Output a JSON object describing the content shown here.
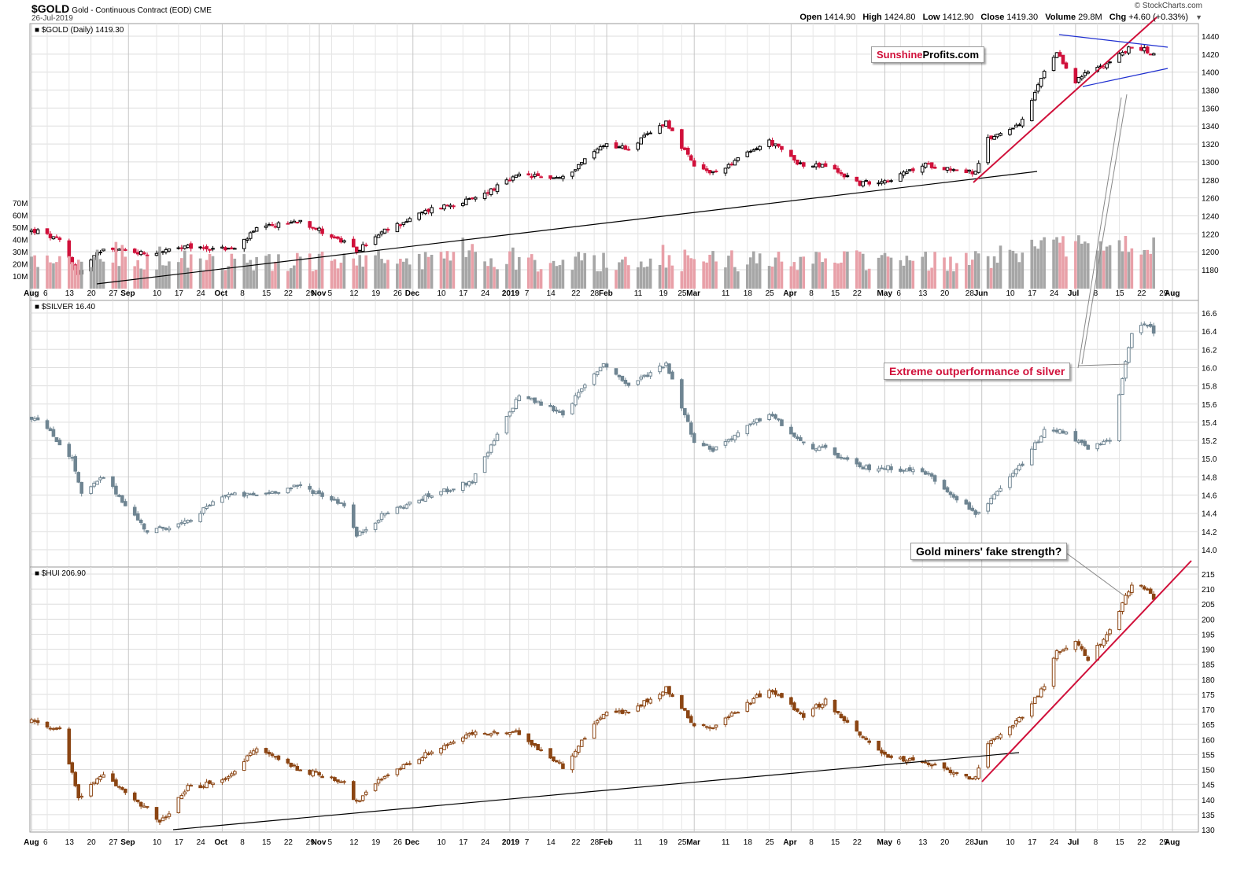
{
  "header": {
    "symbol": "$GOLD",
    "description": "Gold - Continuous Contract (EOD)",
    "exchange": "CME",
    "date": "26-Jul-2019",
    "watermark": "© StockCharts.com",
    "quote": {
      "open_label": "Open",
      "open": "1414.90",
      "high_label": "High",
      "high": "1424.80",
      "low_label": "Low",
      "low": "1412.90",
      "close_label": "Close",
      "close": "1419.30",
      "volume_label": "Volume",
      "volume": "29.8M",
      "chg_label": "Chg",
      "chg": "+4.60 (+0.33%)"
    }
  },
  "annotations": {
    "brand_a": "Sunshine",
    "brand_b": "Profits.com",
    "silver_callout": "Extreme outperformance of silver",
    "miners_callout": "Gold miners' fake strength?"
  },
  "colors": {
    "gold_up": "#000000",
    "gold_down": "#d0103a",
    "silver": "#6f8592",
    "hui": "#8b4513",
    "vol_up": "#a6a6a6",
    "vol_down": "#e8a0a8",
    "uptrend": "#d0103a",
    "triangle": "#1f2fd0",
    "support": "#000000",
    "grid": "#dddddd"
  },
  "chart_data": [
    {
      "type": "candlestick",
      "name": "$GOLD (Daily) 1419.30",
      "ylim": [
        1165,
        1450
      ],
      "yticks": [
        1180,
        1200,
        1220,
        1240,
        1260,
        1280,
        1300,
        1320,
        1340,
        1360,
        1380,
        1400,
        1420,
        1440
      ],
      "close_keypoints": [
        [
          "2018-08-03",
          1223
        ],
        [
          "2018-08-10",
          1212
        ],
        [
          "2018-08-16",
          1175
        ],
        [
          "2018-08-24",
          1205
        ],
        [
          "2018-09-07",
          1198
        ],
        [
          "2018-09-20",
          1205
        ],
        [
          "2018-10-05",
          1203
        ],
        [
          "2018-10-12",
          1225
        ],
        [
          "2018-10-26",
          1235
        ],
        [
          "2018-11-09",
          1210
        ],
        [
          "2018-11-13",
          1201
        ],
        [
          "2018-11-22",
          1223
        ],
        [
          "2018-12-07",
          1248
        ],
        [
          "2018-12-20",
          1258
        ],
        [
          "2019-01-04",
          1285
        ],
        [
          "2019-01-18",
          1282
        ],
        [
          "2019-01-31",
          1320
        ],
        [
          "2019-02-08",
          1315
        ],
        [
          "2019-02-20",
          1345
        ],
        [
          "2019-03-01",
          1295
        ],
        [
          "2019-03-07",
          1287
        ],
        [
          "2019-03-25",
          1323
        ],
        [
          "2019-04-05",
          1295
        ],
        [
          "2019-04-12",
          1296
        ],
        [
          "2019-04-23",
          1276
        ],
        [
          "2019-05-03",
          1281
        ],
        [
          "2019-05-14",
          1297
        ],
        [
          "2019-05-30",
          1288
        ],
        [
          "2019-06-03",
          1325
        ],
        [
          "2019-06-14",
          1345
        ],
        [
          "2019-06-21",
          1400
        ],
        [
          "2019-06-25",
          1420
        ],
        [
          "2019-07-01",
          1390
        ],
        [
          "2019-07-05",
          1400
        ],
        [
          "2019-07-12",
          1412
        ],
        [
          "2019-07-19",
          1428
        ],
        [
          "2019-07-23",
          1425
        ],
        [
          "2019-07-26",
          1419.3
        ]
      ],
      "volume_axis": [
        "10M",
        "20M",
        "30M",
        "40M",
        "50M",
        "60M",
        "70M"
      ],
      "x_tick_labels": [
        "Aug",
        "6",
        "13",
        "20",
        "27",
        "Sep",
        "10",
        "17",
        "24",
        "Oct",
        "8",
        "15",
        "22",
        "29",
        "Nov",
        "5",
        "12",
        "19",
        "26",
        "Dec",
        "10",
        "17",
        "24",
        "2019",
        "7",
        "14",
        "22",
        "28",
        "Feb",
        "11",
        "19",
        "25",
        "Mar",
        "11",
        "18",
        "25",
        "Apr",
        "8",
        "15",
        "22",
        "May",
        "6",
        "13",
        "20",
        "28",
        "Jun",
        "10",
        "17",
        "24",
        "Jul",
        "8",
        "15",
        "22",
        "29",
        "Aug"
      ]
    },
    {
      "type": "candlestick",
      "name": "$SILVER 16.40",
      "ylim": [
        13.85,
        16.75
      ],
      "yticks": [
        14.0,
        14.2,
        14.4,
        14.6,
        14.8,
        15.0,
        15.2,
        15.4,
        15.6,
        15.8,
        16.0,
        16.2,
        16.4,
        16.6
      ],
      "close_keypoints": [
        [
          "2018-08-03",
          15.45
        ],
        [
          "2018-08-14",
          15.0
        ],
        [
          "2018-08-17",
          14.6
        ],
        [
          "2018-08-24",
          14.8
        ],
        [
          "2018-09-07",
          14.2
        ],
        [
          "2018-09-20",
          14.3
        ],
        [
          "2018-10-01",
          14.6
        ],
        [
          "2018-10-12",
          14.6
        ],
        [
          "2018-10-26",
          14.7
        ],
        [
          "2018-11-09",
          14.5
        ],
        [
          "2018-11-13",
          14.15
        ],
        [
          "2018-11-22",
          14.4
        ],
        [
          "2018-12-07",
          14.6
        ],
        [
          "2018-12-20",
          14.75
        ],
        [
          "2019-01-04",
          15.7
        ],
        [
          "2019-01-18",
          15.5
        ],
        [
          "2019-01-31",
          16.05
        ],
        [
          "2019-02-08",
          15.8
        ],
        [
          "2019-02-20",
          16.05
        ],
        [
          "2019-03-01",
          15.2
        ],
        [
          "2019-03-07",
          15.1
        ],
        [
          "2019-03-25",
          15.5
        ],
        [
          "2019-04-05",
          15.15
        ],
        [
          "2019-04-12",
          15.1
        ],
        [
          "2019-04-23",
          14.9
        ],
        [
          "2019-05-03",
          14.9
        ],
        [
          "2019-05-14",
          14.85
        ],
        [
          "2019-05-30",
          14.4
        ],
        [
          "2019-06-03",
          14.5
        ],
        [
          "2019-06-14",
          14.95
        ],
        [
          "2019-06-21",
          15.3
        ],
        [
          "2019-06-28",
          15.3
        ],
        [
          "2019-07-05",
          15.1
        ],
        [
          "2019-07-12",
          15.2
        ],
        [
          "2019-07-16",
          15.9
        ],
        [
          "2019-07-19",
          16.35
        ],
        [
          "2019-07-23",
          16.5
        ],
        [
          "2019-07-26",
          16.4
        ]
      ]
    },
    {
      "type": "candlestick",
      "name": "$HUI 206.90",
      "ylim": [
        129.5,
        217
      ],
      "yticks": [
        130,
        135,
        140,
        145,
        150,
        155,
        160,
        165,
        170,
        175,
        180,
        185,
        190,
        195,
        200,
        205,
        210,
        215
      ],
      "close_keypoints": [
        [
          "2018-08-03",
          166
        ],
        [
          "2018-08-10",
          163
        ],
        [
          "2018-08-16",
          141
        ],
        [
          "2018-08-24",
          148
        ],
        [
          "2018-09-07",
          137
        ],
        [
          "2018-09-11",
          132
        ],
        [
          "2018-09-20",
          144
        ],
        [
          "2018-10-01",
          146
        ],
        [
          "2018-10-12",
          157
        ],
        [
          "2018-10-26",
          150
        ],
        [
          "2018-11-09",
          146
        ],
        [
          "2018-11-13",
          139
        ],
        [
          "2018-11-22",
          148
        ],
        [
          "2018-12-07",
          156
        ],
        [
          "2018-12-20",
          162
        ],
        [
          "2019-01-04",
          162
        ],
        [
          "2019-01-18",
          151
        ],
        [
          "2019-01-31",
          169
        ],
        [
          "2019-02-08",
          169
        ],
        [
          "2019-02-20",
          177
        ],
        [
          "2019-03-01",
          165
        ],
        [
          "2019-03-07",
          164
        ],
        [
          "2019-03-25",
          177
        ],
        [
          "2019-04-05",
          168
        ],
        [
          "2019-04-12",
          173
        ],
        [
          "2019-04-23",
          161
        ],
        [
          "2019-05-03",
          154
        ],
        [
          "2019-05-14",
          152
        ],
        [
          "2019-05-30",
          147
        ],
        [
          "2019-06-03",
          158
        ],
        [
          "2019-06-14",
          168
        ],
        [
          "2019-06-21",
          178
        ],
        [
          "2019-06-25",
          189
        ],
        [
          "2019-07-01",
          192
        ],
        [
          "2019-07-05",
          187
        ],
        [
          "2019-07-12",
          196
        ],
        [
          "2019-07-19",
          212
        ],
        [
          "2019-07-23",
          210
        ],
        [
          "2019-07-26",
          206.9
        ]
      ]
    }
  ]
}
